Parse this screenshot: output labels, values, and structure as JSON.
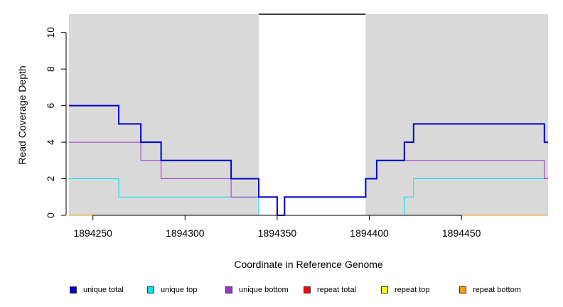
{
  "chart_data": {
    "type": "line",
    "title": "",
    "xlabel": "Coordinate in Reference Genome",
    "ylabel": "Read Coverage Depth",
    "xlim": [
      1894237,
      1894497
    ],
    "ylim": [
      0,
      11
    ],
    "x_ticks": [
      1894250,
      1894300,
      1894350,
      1894400,
      1894450
    ],
    "x_tick_labels": [
      "1894250",
      "1894300",
      "1894350",
      "1894400",
      "1894450"
    ],
    "y_ticks": [
      0,
      2,
      4,
      6,
      8,
      10
    ],
    "y_tick_labels": [
      "0",
      "2",
      "4",
      "6",
      "8",
      "10"
    ],
    "shaded_regions": [
      {
        "x0": 1894237,
        "x1": 1894340,
        "color": "#d9d9d9"
      },
      {
        "x0": 1894398,
        "x1": 1894497,
        "color": "#d9d9d9"
      }
    ],
    "top_bar": {
      "x0": 1894340,
      "x1": 1894398
    },
    "series": [
      {
        "name": "unique total",
        "color": "#0000cc",
        "width": 2,
        "x": [
          1894237,
          1894264,
          1894264,
          1894276,
          1894276,
          1894287,
          1894287,
          1894325,
          1894325,
          1894340,
          1894340,
          1894350,
          1894350,
          1894354,
          1894354,
          1894398,
          1894398,
          1894404,
          1894404,
          1894419,
          1894419,
          1894424,
          1894424,
          1894495,
          1894495,
          1894497
        ],
        "y": [
          6,
          6,
          5,
          5,
          4,
          4,
          3,
          3,
          2,
          2,
          1,
          1,
          0,
          0,
          1,
          1,
          2,
          2,
          3,
          3,
          4,
          4,
          5,
          5,
          4,
          4
        ]
      },
      {
        "name": "unique top",
        "color": "#00e5e5",
        "width": 1,
        "x": [
          1894237,
          1894264,
          1894264,
          1894340,
          1894340,
          1894419,
          1894419,
          1894424,
          1894424,
          1894495,
          1894495,
          1894497
        ],
        "y": [
          2,
          2,
          1,
          1,
          0,
          0,
          1,
          1,
          2,
          2,
          2,
          2
        ]
      },
      {
        "name": "unique bottom",
        "color": "#9933cc",
        "width": 1,
        "x": [
          1894237,
          1894276,
          1894276,
          1894287,
          1894287,
          1894325,
          1894325,
          1894340,
          1894340,
          1894350,
          1894350,
          1894354,
          1894354,
          1894398,
          1894398,
          1894404,
          1894404,
          1894495,
          1894495,
          1894497
        ],
        "y": [
          4,
          4,
          3,
          3,
          2,
          2,
          1,
          1,
          1,
          1,
          0,
          0,
          1,
          1,
          2,
          2,
          3,
          3,
          2,
          2
        ]
      },
      {
        "name": "repeat total",
        "color": "#ff0000",
        "width": 1,
        "x": [
          1894237,
          1894497
        ],
        "y": [
          0,
          0
        ]
      },
      {
        "name": "repeat top",
        "color": "#ffff00",
        "width": 1,
        "x": [
          1894237,
          1894497
        ],
        "y": [
          0,
          0
        ]
      },
      {
        "name": "repeat bottom",
        "color": "#ff9900",
        "width": 1,
        "x": [
          1894237,
          1894497
        ],
        "y": [
          0,
          0
        ]
      }
    ],
    "legend": {
      "placement": "bottom",
      "items": [
        {
          "label": "unique total",
          "color": "#0000cc"
        },
        {
          "label": "unique top",
          "color": "#00e5e5"
        },
        {
          "label": "unique bottom",
          "color": "#9933cc"
        },
        {
          "label": "repeat total",
          "color": "#ff0000"
        },
        {
          "label": "repeat top",
          "color": "#ffff00"
        },
        {
          "label": "repeat bottom",
          "color": "#ff9900"
        }
      ]
    }
  }
}
